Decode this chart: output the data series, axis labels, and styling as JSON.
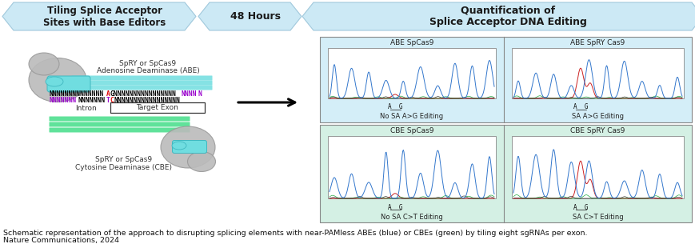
{
  "banner1_text": "Tiling Splice Acceptor\nSites with Base Editors",
  "banner2_text": "48 Hours",
  "banner3_text": "Quantification of\nSplice Acceptor DNA Editing",
  "banner_color": "#cce9f5",
  "banner_border": "#a0c8dc",
  "caption_line1": "Schematic representation of the approach to disrupting splicing elements with near-PAMless ABEs (blue) or CBEs (green) by tiling eight sgRNAs per exon.",
  "caption_line2": "Nature Communications, 2024",
  "caption_fontsize": 6.8,
  "abe_box_color": "#d4eef8",
  "cbe_box_color": "#d4f0e4",
  "box_border": "#888888",
  "dna_n_color": "#000000",
  "dna_a_color": "#dd0000",
  "dna_purple_n_color": "#9900cc",
  "label_color": "#333333",
  "intron_label": "Intron",
  "exon_label": "Target Exon",
  "abe_label1": "SpRY or SpCas9",
  "abe_label2": "Adenosine Deaminase (ABE)",
  "cbe_label1": "SpRY or SpCas9",
  "cbe_label2": "Cytosine Deaminase (CBE)",
  "panel_labels": [
    "ABE SpCas9",
    "ABE SpRY Cas9",
    "CBE SpCas9",
    "CBE SpRY Cas9"
  ],
  "panel_sublabels": [
    "No SA A>G Editing",
    "SA A>G Editing",
    "No SA C>T Editing",
    "SA C>T Editing"
  ],
  "teal_color": "#70dde0",
  "green_color": "#44dd88",
  "gray_blob": "#bbbbbb",
  "gray_blob_edge": "#999999"
}
